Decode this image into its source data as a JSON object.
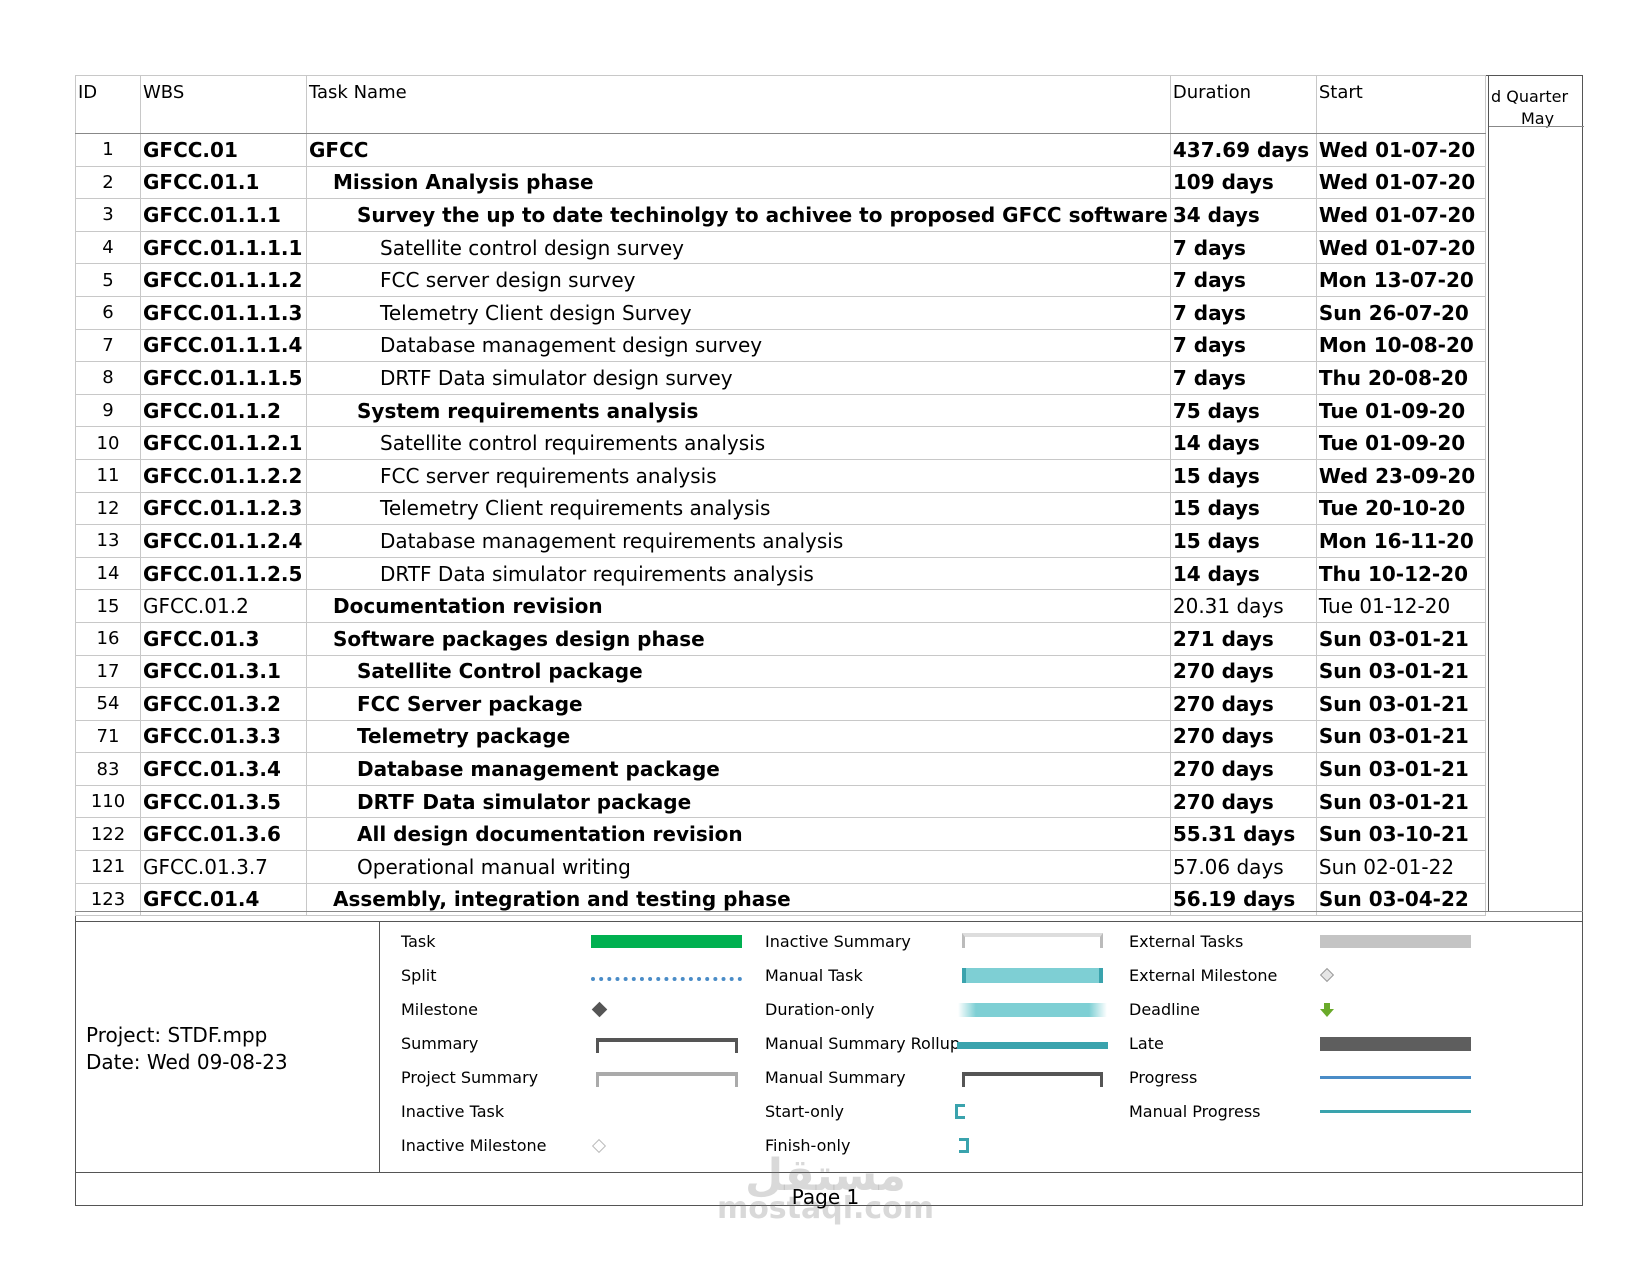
{
  "columns": {
    "id": "ID",
    "wbs": "WBS",
    "task_name": "Task Name",
    "duration": "Duration",
    "start": "Start"
  },
  "timescale": {
    "quarter": "d Quarter",
    "month": "May"
  },
  "rows": [
    {
      "id": "1",
      "wbs": "GFCC.01",
      "name": "GFCC",
      "duration": "437.69 days",
      "start": "Wed 01-07-20",
      "level": 0,
      "bold": true
    },
    {
      "id": "2",
      "wbs": "GFCC.01.1",
      "name": "Mission Analysis phase",
      "duration": "109 days",
      "start": "Wed 01-07-20",
      "level": 1,
      "bold": true
    },
    {
      "id": "3",
      "wbs": "GFCC.01.1.1",
      "name": "Survey the up to date techinolgy to achivee to proposed GFCC software",
      "duration": "34 days",
      "start": "Wed 01-07-20",
      "level": 2,
      "bold": true
    },
    {
      "id": "4",
      "wbs": "GFCC.01.1.1.1",
      "name": "Satellite control design survey",
      "duration": "7 days",
      "start": "Wed 01-07-20",
      "level": 3,
      "bold": false
    },
    {
      "id": "5",
      "wbs": "GFCC.01.1.1.2",
      "name": "FCC server design survey",
      "duration": "7 days",
      "start": "Mon 13-07-20",
      "level": 3,
      "bold": false
    },
    {
      "id": "6",
      "wbs": "GFCC.01.1.1.3",
      "name": "Telemetry Client design Survey",
      "duration": "7 days",
      "start": "Sun 26-07-20",
      "level": 3,
      "bold": false
    },
    {
      "id": "7",
      "wbs": "GFCC.01.1.1.4",
      "name": "Database management design survey",
      "duration": "7 days",
      "start": "Mon 10-08-20",
      "level": 3,
      "bold": false
    },
    {
      "id": "8",
      "wbs": "GFCC.01.1.1.5",
      "name": "DRTF Data simulator design survey",
      "duration": "7 days",
      "start": "Thu 20-08-20",
      "level": 3,
      "bold": false
    },
    {
      "id": "9",
      "wbs": "GFCC.01.1.2",
      "name": "System requirements analysis",
      "duration": "75 days",
      "start": "Tue 01-09-20",
      "level": 2,
      "bold": true
    },
    {
      "id": "10",
      "wbs": "GFCC.01.1.2.1",
      "name": "Satellite control requirements analysis",
      "duration": "14 days",
      "start": "Tue 01-09-20",
      "level": 3,
      "bold": false
    },
    {
      "id": "11",
      "wbs": "GFCC.01.1.2.2",
      "name": "FCC server requirements analysis",
      "duration": "15 days",
      "start": "Wed 23-09-20",
      "level": 3,
      "bold": false
    },
    {
      "id": "12",
      "wbs": "GFCC.01.1.2.3",
      "name": "Telemetry Client requirements analysis",
      "duration": "15 days",
      "start": "Tue 20-10-20",
      "level": 3,
      "bold": false
    },
    {
      "id": "13",
      "wbs": "GFCC.01.1.2.4",
      "name": "Database management requirements analysis",
      "duration": "15 days",
      "start": "Mon 16-11-20",
      "level": 3,
      "bold": false
    },
    {
      "id": "14",
      "wbs": "GFCC.01.1.2.5",
      "name": "DRTF Data simulator requirements analysis",
      "duration": "14 days",
      "start": "Thu 10-12-20",
      "level": 3,
      "bold": false
    },
    {
      "id": "15",
      "wbs": "GFCC.01.2",
      "name": "Documentation revision",
      "duration": "20.31 days",
      "start": "Tue 01-12-20",
      "level": 1,
      "bold": true,
      "plain_cols": true
    },
    {
      "id": "16",
      "wbs": "GFCC.01.3",
      "name": "Software packages design phase",
      "duration": "271 days",
      "start": "Sun 03-01-21",
      "level": 1,
      "bold": true
    },
    {
      "id": "17",
      "wbs": "GFCC.01.3.1",
      "name": "Satellite Control package",
      "duration": "270 days",
      "start": "Sun 03-01-21",
      "level": 2,
      "bold": true
    },
    {
      "id": "54",
      "wbs": "GFCC.01.3.2",
      "name": "FCC Server package",
      "duration": "270 days",
      "start": "Sun 03-01-21",
      "level": 2,
      "bold": true
    },
    {
      "id": "71",
      "wbs": "GFCC.01.3.3",
      "name": "Telemetry package",
      "duration": "270 days",
      "start": "Sun 03-01-21",
      "level": 2,
      "bold": true
    },
    {
      "id": "83",
      "wbs": "GFCC.01.3.4",
      "name": "Database management package",
      "duration": "270 days",
      "start": "Sun 03-01-21",
      "level": 2,
      "bold": true
    },
    {
      "id": "110",
      "wbs": "GFCC.01.3.5",
      "name": "DRTF Data simulator package",
      "duration": "270 days",
      "start": "Sun 03-01-21",
      "level": 2,
      "bold": true
    },
    {
      "id": "122",
      "wbs": "GFCC.01.3.6",
      "name": "All design documentation revision",
      "duration": "55.31 days",
      "start": "Sun 03-10-21",
      "level": 2,
      "bold": true
    },
    {
      "id": "121",
      "wbs": "GFCC.01.3.7",
      "name": "Operational manual writing",
      "duration": "57.06 days",
      "start": "Sun 02-01-22",
      "level": 2,
      "bold": false
    },
    {
      "id": "123",
      "wbs": "GFCC.01.4",
      "name": "Assembly, integration and testing phase",
      "duration": "56.19 days",
      "start": "Sun 03-04-22",
      "level": 1,
      "bold": true
    }
  ],
  "project": {
    "name": "Project: STDF.mpp",
    "date": "Date: Wed 09-08-23"
  },
  "legend": {
    "task": "Task",
    "split": "Split",
    "milestone": "Milestone",
    "summary": "Summary",
    "project_summary": "Project Summary",
    "inactive_task": "Inactive Task",
    "inactive_milestone": "Inactive Milestone",
    "inactive_summary": "Inactive Summary",
    "manual_task": "Manual Task",
    "duration_only": "Duration-only",
    "manual_summary_rollup": "Manual Summary Rollup",
    "manual_summary": "Manual Summary",
    "start_only": "Start-only",
    "finish_only": "Finish-only",
    "external_tasks": "External Tasks",
    "external_milestone": "External Milestone",
    "deadline": "Deadline",
    "late": "Late",
    "progress": "Progress",
    "manual_progress": "Manual Progress"
  },
  "colors": {
    "task": "#00b050",
    "manual": "#7ecfd4",
    "rollup": "#3aa3ad",
    "late": "#5e5e5e",
    "progress": "#4a8cc7",
    "external": "#c4c4c4",
    "deadline": "#6aaa2a"
  },
  "footer": {
    "page": "Page 1"
  },
  "watermark": {
    "arabic": "مستقل",
    "latin": "mostaql.com"
  }
}
